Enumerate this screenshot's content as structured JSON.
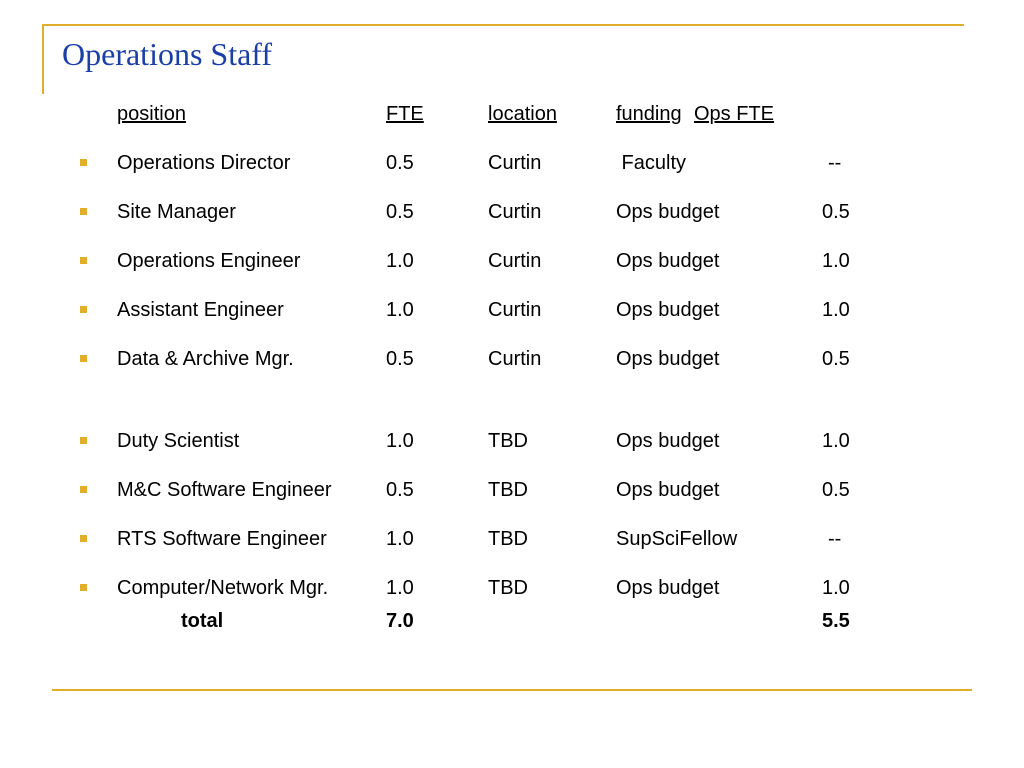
{
  "slide": {
    "title": "Operations Staff",
    "accent_color": "#E0AE2A",
    "title_color": "#1A3FA6"
  },
  "table": {
    "headers": {
      "position": "position",
      "fte": "FTE",
      "location": "location",
      "funding": "funding",
      "ops_fte": "Ops FTE"
    },
    "rows": [
      {
        "position": "Operations Director",
        "fte": "0.5",
        "location": "Curtin",
        "funding": " Faculty",
        "ops_fte": "--"
      },
      {
        "position": "Site Manager",
        "fte": "0.5",
        "location": "Curtin",
        "funding": "Ops budget",
        "ops_fte": "0.5"
      },
      {
        "position": "Operations Engineer",
        "fte": "1.0",
        "location": "Curtin",
        "funding": "Ops budget",
        "ops_fte": "1.0"
      },
      {
        "position": "Assistant Engineer",
        "fte": "1.0",
        "location": "Curtin",
        "funding": "Ops budget",
        "ops_fte": "1.0"
      },
      {
        "position": "Data & Archive Mgr.",
        "fte": "0.5",
        "location": "Curtin",
        "funding": "Ops budget",
        "ops_fte": "0.5"
      },
      {
        "position": "Duty Scientist",
        "fte": "1.0",
        "location": "TBD",
        "funding": "Ops budget",
        "ops_fte": "1.0"
      },
      {
        "position": "M&C Software Engineer",
        "fte": "0.5",
        "location": "TBD",
        "funding": "Ops budget",
        "ops_fte": "0.5"
      },
      {
        "position": "RTS Software Engineer",
        "fte": "1.0",
        "location": "TBD",
        "funding": "SupSciFellow",
        "ops_fte": "--"
      },
      {
        "position": "Computer/Network Mgr.",
        "fte": "1.0",
        "location": "TBD",
        "funding": "Ops budget",
        "ops_fte": "1.0"
      }
    ],
    "total": {
      "label": "total",
      "fte": "7.0",
      "ops_fte": "5.5"
    }
  }
}
